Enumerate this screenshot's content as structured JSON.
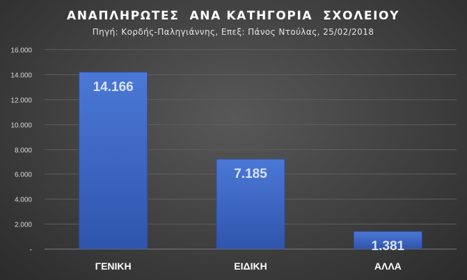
{
  "chart_data": {
    "type": "bar",
    "title": "ΑΝΑΠΛΗΡΩΤΕΣ  ΑΝΑ ΚΑΤΗΓΟΡΙΑ  ΣΧΟΛΕΙΟΥ",
    "subtitle": "Πηγή: Κορδής-Παληγιάννης, Επεξ: Πάνος Ντούλας, 25/02/2018",
    "categories": [
      "ΓΕΝΙΚΗ",
      "ΕΙΔΙΚΗ",
      "ΑΛΛΑ"
    ],
    "values": [
      14166,
      7185,
      1381
    ],
    "value_labels": [
      "14.166",
      "7.185",
      "1.381"
    ],
    "ylim": [
      0,
      16000
    ],
    "yticks": [
      0,
      2000,
      4000,
      6000,
      8000,
      10000,
      12000,
      14000,
      16000
    ],
    "ytick_labels": [
      "-",
      "2.000",
      "4.000",
      "6.000",
      "8.000",
      "10.000",
      "12.000",
      "14.000",
      "16.000"
    ],
    "xlabel": "",
    "ylabel": "",
    "grid": true,
    "legend": "none",
    "colors": {
      "bar_top": "#4b78d6",
      "bar_bottom": "#2f55ad",
      "grid": "#5e5e5e",
      "text": "#ffffff",
      "tick_text": "#d9d9d9",
      "value_text": "#d9e3f7"
    }
  }
}
